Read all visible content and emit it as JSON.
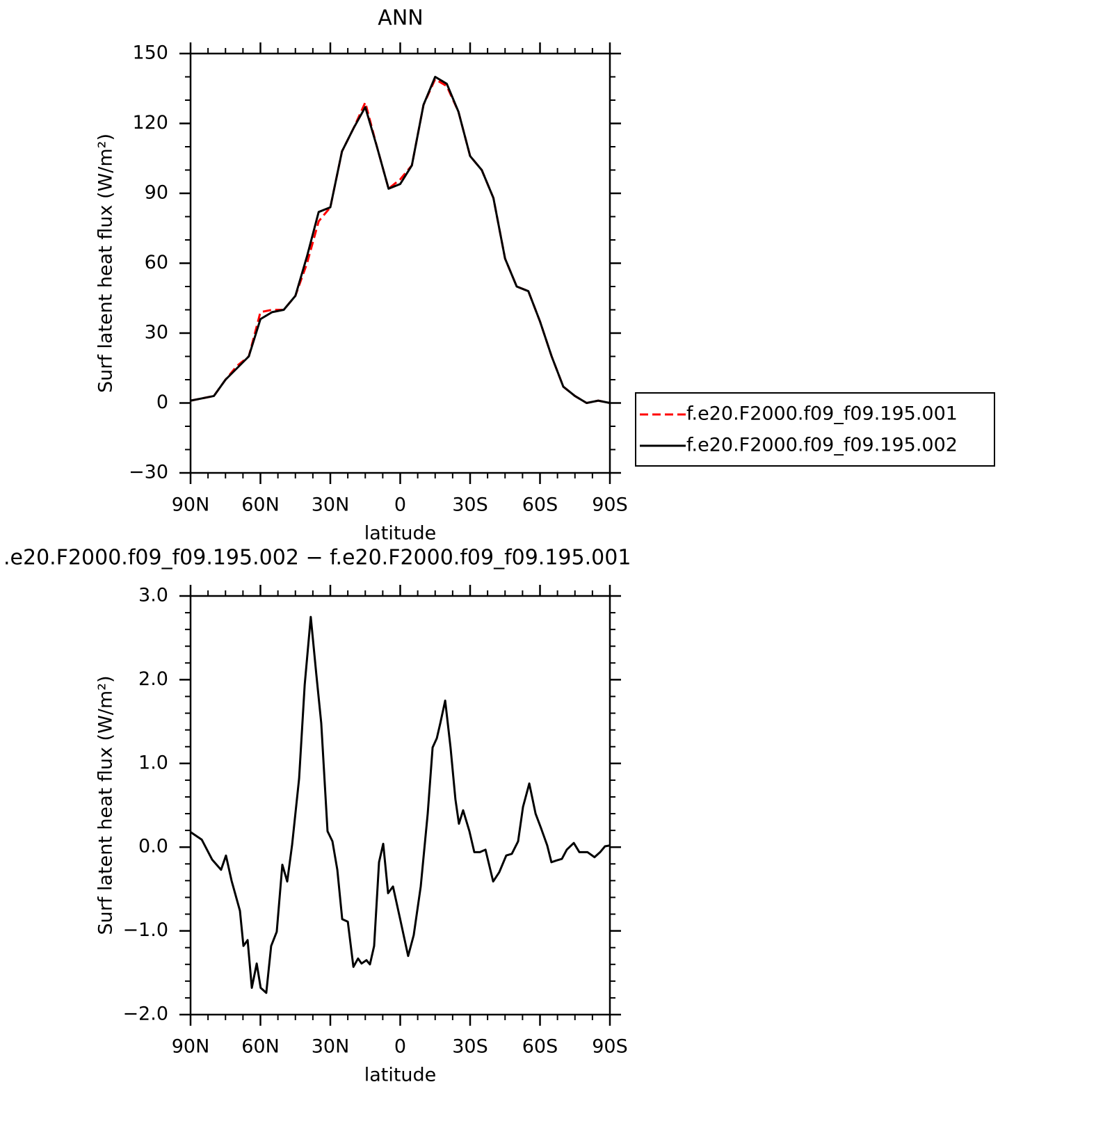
{
  "chart_data": [
    {
      "type": "line",
      "title": "ANN",
      "xlabel": "latitude",
      "ylabel": "Surf latent heat flux (W/m²)",
      "x": [
        90,
        85,
        80,
        75,
        70,
        65,
        60,
        55,
        50,
        45,
        40,
        35,
        30,
        25,
        20,
        15,
        10,
        5,
        0,
        -5,
        -10,
        -15,
        -20,
        -25,
        -30,
        -35,
        -40,
        -45,
        -50,
        -55,
        -60,
        -65,
        -70,
        -75,
        -80,
        -85,
        -90
      ],
      "series": [
        {
          "name": "f.e20.F2000.f09_f09.195.001",
          "color": "#ff0000",
          "style": "dashed",
          "values": [
            1,
            2,
            3,
            10,
            16,
            20,
            39,
            40,
            40,
            46,
            60,
            78,
            84,
            108,
            118,
            129,
            110,
            92,
            96,
            102,
            128,
            139,
            136,
            125,
            106,
            100,
            88,
            62,
            50,
            48,
            35,
            20,
            7,
            3,
            0,
            1,
            0
          ]
        },
        {
          "name": "f.e20.F2000.f09_f09.195.002",
          "color": "#000000",
          "style": "solid",
          "values": [
            1,
            2,
            3,
            10,
            15,
            20,
            36,
            39,
            40,
            46,
            63,
            82,
            84,
            108,
            118,
            127,
            110,
            92,
            94,
            102,
            128,
            140,
            137,
            125,
            106,
            100,
            88,
            62,
            50,
            48,
            35,
            20,
            7,
            3,
            0,
            1,
            0
          ]
        }
      ],
      "xlim": [
        90,
        -90
      ],
      "xticks": [
        {
          "value": 90,
          "label": "90N"
        },
        {
          "value": 60,
          "label": "60N"
        },
        {
          "value": 30,
          "label": "30N"
        },
        0,
        {
          "value": -30,
          "label": "30S"
        },
        {
          "value": -60,
          "label": "60S"
        },
        {
          "value": -90,
          "label": "90S"
        }
      ],
      "ylim": [
        -30,
        150
      ],
      "yticks": [
        {
          "value": -30,
          "label": "−30"
        },
        0,
        30,
        60,
        90,
        120,
        150
      ],
      "legend": "right"
    },
    {
      "type": "line",
      "title": ".e20.F2000.f09_f09.195.002 − f.e20.F2000.f09_f09.195.001",
      "xlabel": "latitude",
      "ylabel": "Surf latent heat flux (W/m²)",
      "x": [
        90,
        85.2,
        80.7,
        76.9,
        74.8,
        72.4,
        68.8,
        67.3,
        65.5,
        63.7,
        61.6,
        59.9,
        57.5,
        55.4,
        53.0,
        50.6,
        48.5,
        46.4,
        43.4,
        41.0,
        38.4,
        36.0,
        33.9,
        31.2,
        29.1,
        27.0,
        24.9,
        22.5,
        20.1,
        18.1,
        16.6,
        14.5,
        13.0,
        11.2,
        9.1,
        7.3,
        5.2,
        3.1,
        0.1,
        -3.4,
        -5.8,
        -8.8,
        -11.8,
        -13.9,
        -15.7,
        -17.2,
        -19.3,
        -21.6,
        -23.7,
        -25.2,
        -27.0,
        -29.7,
        -31.8,
        -34.2,
        -36.6,
        -39.9,
        -42.5,
        -45.5,
        -47.9,
        -50.6,
        -52.7,
        -55.4,
        -58.1,
        -60.4,
        -63.1,
        -64.9,
        -67.0,
        -69.4,
        -71.5,
        -74.5,
        -76.9,
        -80.4,
        -83.4,
        -85.8,
        -87.9,
        -90
      ],
      "series": [
        {
          "color": "#000000",
          "style": "solid",
          "values": [
            0.18,
            0.09,
            -0.15,
            -0.27,
            -0.1,
            -0.4,
            -0.76,
            -1.18,
            -1.11,
            -1.68,
            -1.39,
            -1.68,
            -1.74,
            -1.18,
            -1.01,
            -0.21,
            -0.41,
            0.03,
            0.82,
            1.94,
            2.75,
            2.06,
            1.48,
            0.19,
            0.07,
            -0.27,
            -0.86,
            -0.89,
            -1.43,
            -1.33,
            -1.39,
            -1.35,
            -1.4,
            -1.18,
            -0.18,
            0.04,
            -0.55,
            -0.47,
            -0.85,
            -1.3,
            -1.05,
            -0.47,
            0.4,
            1.19,
            1.3,
            1.48,
            1.75,
            1.19,
            0.57,
            0.28,
            0.44,
            0.19,
            -0.06,
            -0.06,
            -0.03,
            -0.41,
            -0.3,
            -0.1,
            -0.08,
            0.07,
            0.48,
            0.76,
            0.4,
            0.23,
            0.02,
            -0.18,
            -0.16,
            -0.14,
            -0.03,
            0.05,
            -0.06,
            -0.06,
            -0.12,
            -0.06,
            0.01,
            0.02
          ]
        }
      ],
      "xlim": [
        90,
        -90
      ],
      "xticks": [
        {
          "value": 90,
          "label": "90N"
        },
        {
          "value": 60,
          "label": "60N"
        },
        {
          "value": 30,
          "label": "30N"
        },
        0,
        {
          "value": -30,
          "label": "30S"
        },
        {
          "value": -60,
          "label": "60S"
        },
        {
          "value": -90,
          "label": "90S"
        }
      ],
      "ylim": [
        -2,
        3
      ],
      "yticks": [
        {
          "value": -2,
          "label": "−2.0"
        },
        {
          "value": -1,
          "label": "−1.0"
        },
        {
          "value": 0,
          "label": "0.0"
        },
        {
          "value": 1,
          "label": "1.0"
        },
        {
          "value": 2,
          "label": "2.0"
        },
        {
          "value": 3,
          "label": "3.0"
        }
      ]
    }
  ]
}
